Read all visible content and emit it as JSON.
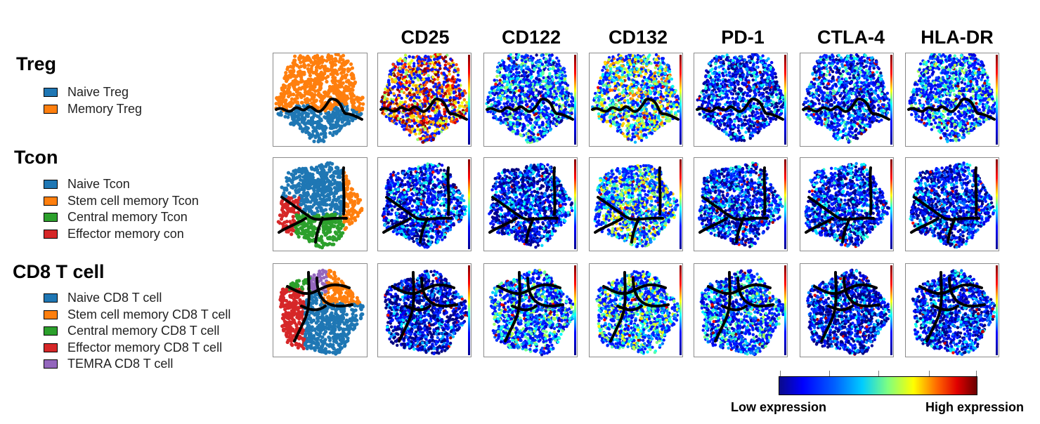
{
  "columns": [
    "CD25",
    "CD122",
    "CD132",
    "PD-1",
    "CTLA-4",
    "HLA-DR"
  ],
  "groups": [
    {
      "title": "Treg",
      "legend": [
        {
          "label": "Naive Treg",
          "color": "#1f77b4"
        },
        {
          "label": "Memory Treg",
          "color": "#ff7f0e"
        }
      ]
    },
    {
      "title": "Tcon",
      "legend": [
        {
          "label": "Naive Tcon",
          "color": "#1f77b4"
        },
        {
          "label": "Stem cell memory Tcon",
          "color": "#ff7f0e"
        },
        {
          "label": "Central memory Tcon",
          "color": "#2ca02c"
        },
        {
          "label": "Effector memory con",
          "color": "#d62728"
        }
      ]
    },
    {
      "title": "CD8 T cell",
      "legend": [
        {
          "label": "Naive CD8 T cell",
          "color": "#1f77b4"
        },
        {
          "label": "Stem cell memory CD8 T cell",
          "color": "#ff7f0e"
        },
        {
          "label": "Central memory CD8 T cell",
          "color": "#2ca02c"
        },
        {
          "label": "Effector memory CD8 T cell",
          "color": "#d62728"
        },
        {
          "label": "TEMRA CD8 T cell",
          "color": "#9467bd"
        }
      ]
    }
  ],
  "expression_levels": {
    "Treg": {
      "CD25": 0.78,
      "CD122": 0.28,
      "CD132": 0.5,
      "PD-1": 0.18,
      "CTLA-4": 0.22,
      "HLA-DR": 0.3
    },
    "Tcon": {
      "CD25": 0.18,
      "CD122": 0.14,
      "CD132": 0.42,
      "PD-1": 0.18,
      "CTLA-4": 0.16,
      "HLA-DR": 0.14
    },
    "CD8 T cell": {
      "CD25": 0.1,
      "CD122": 0.3,
      "CD132": 0.38,
      "PD-1": 0.28,
      "CTLA-4": 0.12,
      "HLA-DR": 0.16
    }
  },
  "colorbar": {
    "low_label": "Low expression",
    "high_label": "High expression"
  }
}
